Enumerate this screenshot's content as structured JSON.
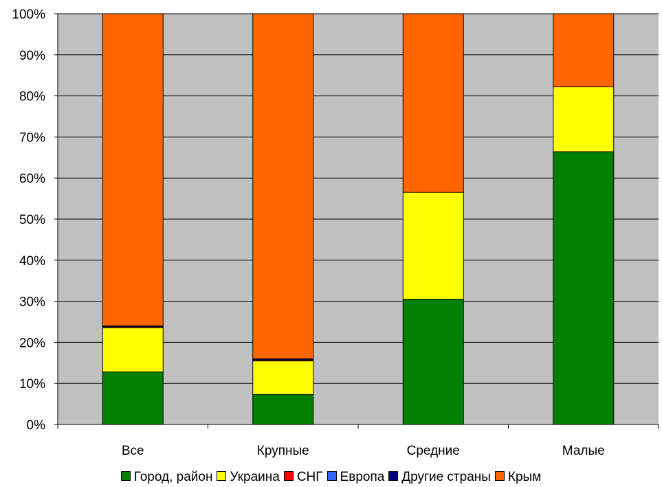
{
  "chart_data": {
    "type": "bar",
    "stacked": true,
    "normalized": true,
    "categories": [
      "Все",
      "Крупные",
      "Средние",
      "Малые"
    ],
    "series": [
      {
        "name": "Город, район",
        "color": "#008000",
        "values": [
          12.8,
          7.3,
          30.5,
          66.4
        ]
      },
      {
        "name": "Украина",
        "color": "#FFFF00",
        "values": [
          10.8,
          8.2,
          26.0,
          15.8
        ]
      },
      {
        "name": "СНГ",
        "color": "#FF0000",
        "values": [
          0.2,
          0.2,
          0.0,
          0.0
        ]
      },
      {
        "name": "Европа",
        "color": "#3366FF",
        "values": [
          0.0,
          0.0,
          0.0,
          0.0
        ]
      },
      {
        "name": "Другие страны",
        "color": "#000080",
        "values": [
          0.2,
          0.3,
          0.0,
          0.0
        ]
      },
      {
        "name": "Крым",
        "color": "#FF6600",
        "values": [
          76.0,
          84.0,
          43.5,
          17.8
        ]
      }
    ],
    "y_ticks": [
      "0%",
      "10%",
      "20%",
      "30%",
      "40%",
      "50%",
      "60%",
      "70%",
      "80%",
      "90%",
      "100%"
    ],
    "ylim": [
      0,
      100
    ],
    "grid": true,
    "plot_background": "#C0C0C0",
    "legend_position": "bottom",
    "title": "",
    "xlabel": "",
    "ylabel": ""
  }
}
